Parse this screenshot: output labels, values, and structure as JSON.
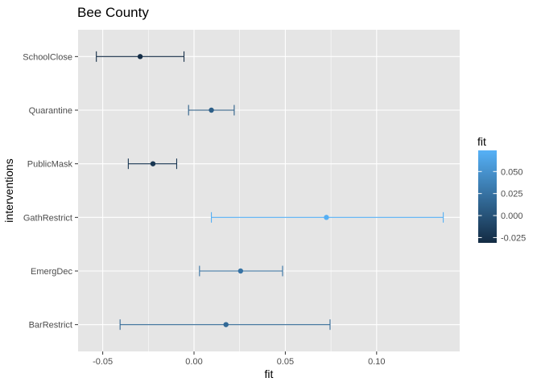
{
  "chart_data": {
    "type": "scatter",
    "title": "Bee County",
    "xlabel": "fit",
    "ylabel": "interventions",
    "xlim": [
      -0.0635,
      0.1455
    ],
    "x_ticks": [
      -0.05,
      0.0,
      0.05,
      0.1
    ],
    "x_tick_labels": [
      "-0.05",
      "0.00",
      "0.05",
      "0.10"
    ],
    "categories": [
      "SchoolClose",
      "Quarantine",
      "PublicMask",
      "GathRestrict",
      "EmergDec",
      "BarRestrict"
    ],
    "points": [
      {
        "category": "SchoolClose",
        "fit": -0.0295,
        "lower": -0.0535,
        "upper": -0.0055
      },
      {
        "category": "Quarantine",
        "fit": 0.0095,
        "lower": -0.003,
        "upper": 0.022
      },
      {
        "category": "PublicMask",
        "fit": -0.0225,
        "lower": -0.036,
        "upper": -0.0095
      },
      {
        "category": "GathRestrict",
        "fit": 0.0725,
        "lower": 0.0095,
        "upper": 0.1365
      },
      {
        "category": "EmergDec",
        "fit": 0.0255,
        "lower": 0.003,
        "upper": 0.0485
      },
      {
        "category": "BarRestrict",
        "fit": 0.0175,
        "lower": -0.0405,
        "upper": 0.0745
      }
    ],
    "grid": true,
    "legend": {
      "title": "fit",
      "position": "right",
      "type": "colorbar",
      "range": [
        -0.031,
        0.074
      ],
      "ticks": [
        -0.025,
        0.0,
        0.025,
        0.05
      ],
      "tick_labels": [
        "-0.025",
        "0.000",
        "0.025",
        "0.050"
      ],
      "color_low": "#132B43",
      "color_high": "#56B1F7"
    },
    "colors": {
      "panel_bg": "#e5e5e5",
      "grid": "#ffffff",
      "tick": "#333333"
    }
  }
}
